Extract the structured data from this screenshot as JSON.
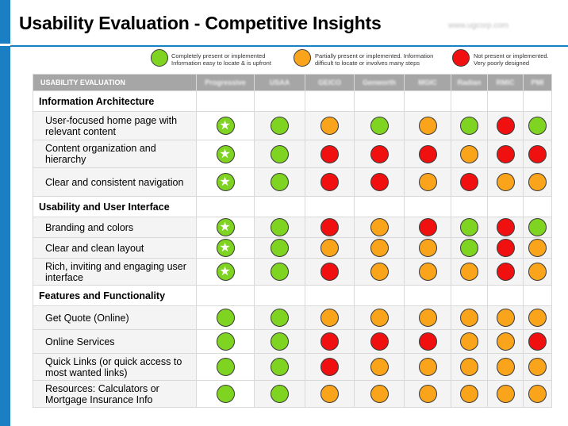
{
  "title": "Usability Evaluation - Competitive Insights",
  "watermark": "www.ugcorp.com",
  "colors": {
    "accent": "#1b7fc4",
    "green": "#7fd321",
    "orange": "#f9a41a",
    "red": "#f01010",
    "header_bg": "#a6a6a6"
  },
  "legend": {
    "green": "Completely present or implemented Information easy to locate & is upfront",
    "orange": "Partially present or implemented. Information difficult to locate or involves many steps",
    "red": "Not present or implemented. Very poorly designed"
  },
  "table": {
    "header_label": "USABILITY EVALUATION",
    "competitors": [
      "Progressive",
      "USAA",
      "GEICO",
      "Genworth",
      "MGIC",
      "Radian",
      "RMIC",
      "PMI"
    ],
    "sections": [
      {
        "title": "Information Architecture",
        "rows": [
          {
            "label": "User-focused home page with relevant content",
            "ratings": [
              "star",
              "green",
              "orange",
              "green",
              "orange",
              "green",
              "red",
              "green"
            ]
          },
          {
            "label": "Content organization and hierarchy",
            "ratings": [
              "star",
              "green",
              "red",
              "red",
              "red",
              "orange",
              "red",
              "red"
            ]
          },
          {
            "label": "Clear and consistent navigation",
            "ratings": [
              "star",
              "green",
              "red",
              "red",
              "orange",
              "red",
              "orange",
              "orange"
            ]
          }
        ]
      },
      {
        "title": "Usability and User Interface",
        "rows": [
          {
            "label": "Branding and colors",
            "ratings": [
              "star",
              "green",
              "red",
              "orange",
              "red",
              "green",
              "red",
              "green"
            ]
          },
          {
            "label": "Clear and clean layout",
            "ratings": [
              "star",
              "green",
              "orange",
              "orange",
              "orange",
              "green",
              "red",
              "orange"
            ]
          },
          {
            "label": "Rich, inviting and engaging user interface",
            "ratings": [
              "star",
              "green",
              "red",
              "orange",
              "orange",
              "orange",
              "red",
              "orange"
            ]
          }
        ]
      },
      {
        "title": "Features and Functionality",
        "rows": [
          {
            "label": "Get Quote (Online)",
            "ratings": [
              "green",
              "green",
              "orange",
              "orange",
              "orange",
              "orange",
              "orange",
              "orange"
            ]
          },
          {
            "label": "Online Services",
            "ratings": [
              "green",
              "green",
              "red",
              "red",
              "red",
              "orange",
              "orange",
              "red"
            ]
          },
          {
            "label": "Quick Links (or quick access to most wanted links)",
            "ratings": [
              "green",
              "green",
              "red",
              "orange",
              "orange",
              "orange",
              "orange",
              "orange"
            ]
          },
          {
            "label": "Resources: Calculators or Mortgage Insurance Info",
            "ratings": [
              "green",
              "green",
              "orange",
              "orange",
              "orange",
              "orange",
              "orange",
              "orange"
            ]
          }
        ]
      }
    ]
  }
}
